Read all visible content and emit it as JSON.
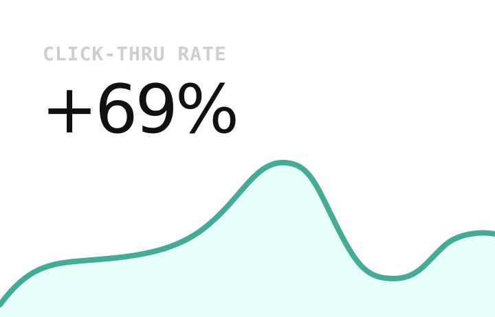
{
  "metric": {
    "label": "CLICK-THRU RATE",
    "value": "+69%"
  },
  "colors": {
    "line": "#44ac96",
    "fill": "#e6fffb",
    "label": "#cfcfcf",
    "value": "#111111"
  },
  "icon": "sparkline-area-chart"
}
